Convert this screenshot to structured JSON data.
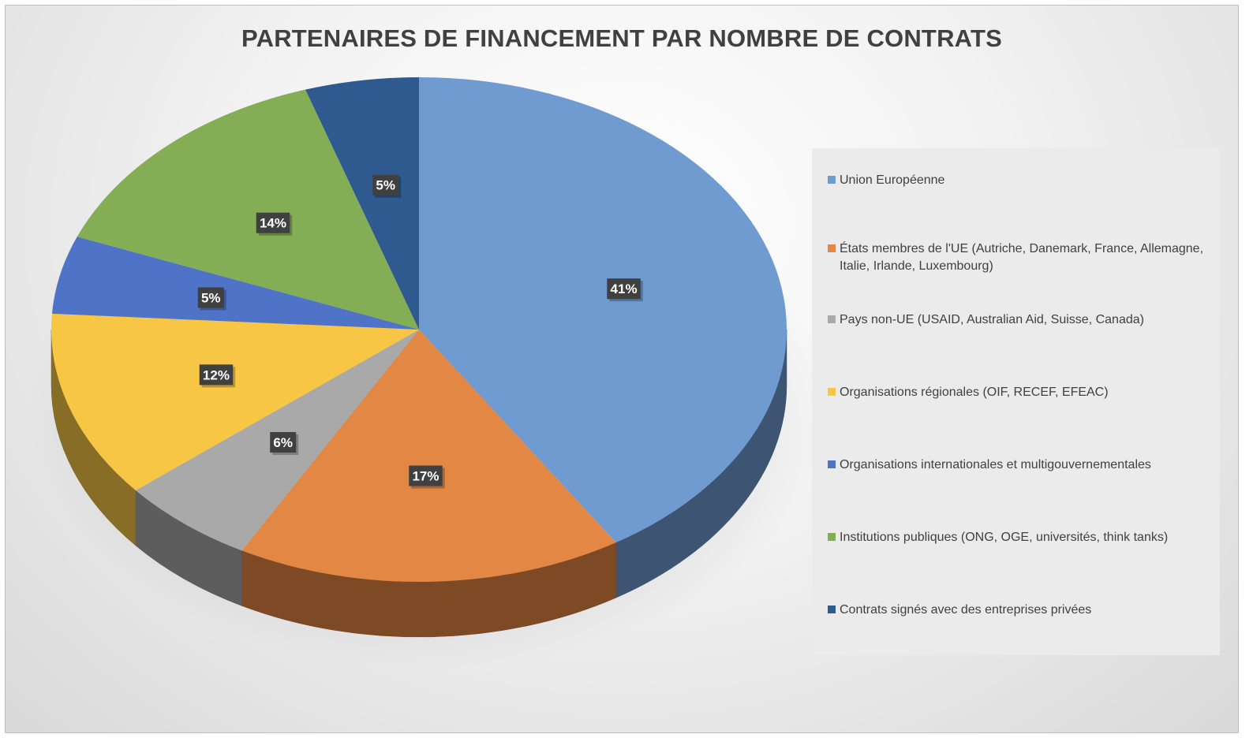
{
  "chart_data": {
    "type": "pie",
    "title": "PARTENAIRES DE FINANCEMENT PAR NOMBRE DE CONTRATS",
    "legend_position": "right",
    "style": "3d",
    "slices": [
      {
        "label": "Union Européenne",
        "value": 41,
        "data_label": "41%",
        "color": "#6f9bd0"
      },
      {
        "label": "États membres de l'UE (Autriche, Danemark, France, Allemagne, Italie, Irlande, Luxembourg)",
        "value": 17,
        "data_label": "17%",
        "color": "#e38744"
      },
      {
        "label": "Pays non-UE (USAID, Australian Aid, Suisse, Canada)",
        "value": 6,
        "data_label": "6%",
        "color": "#a9a9a9"
      },
      {
        "label": "Organisations régionales (OIF, RECEF, EFEAC)",
        "value": 12,
        "data_label": "12%",
        "color": "#f6c644"
      },
      {
        "label": "Organisations internationales et multigouvernementales",
        "value": 5,
        "data_label": "5%",
        "color": "#4f74c7"
      },
      {
        "label": "Institutions publiques (ONG, OGE, universités, think tanks)",
        "value": 14,
        "data_label": "14%",
        "color": "#83ae55"
      },
      {
        "label": "Contrats signés avec des entreprises privées",
        "value": 5,
        "data_label": "5%",
        "color": "#2f5a8f"
      }
    ]
  }
}
